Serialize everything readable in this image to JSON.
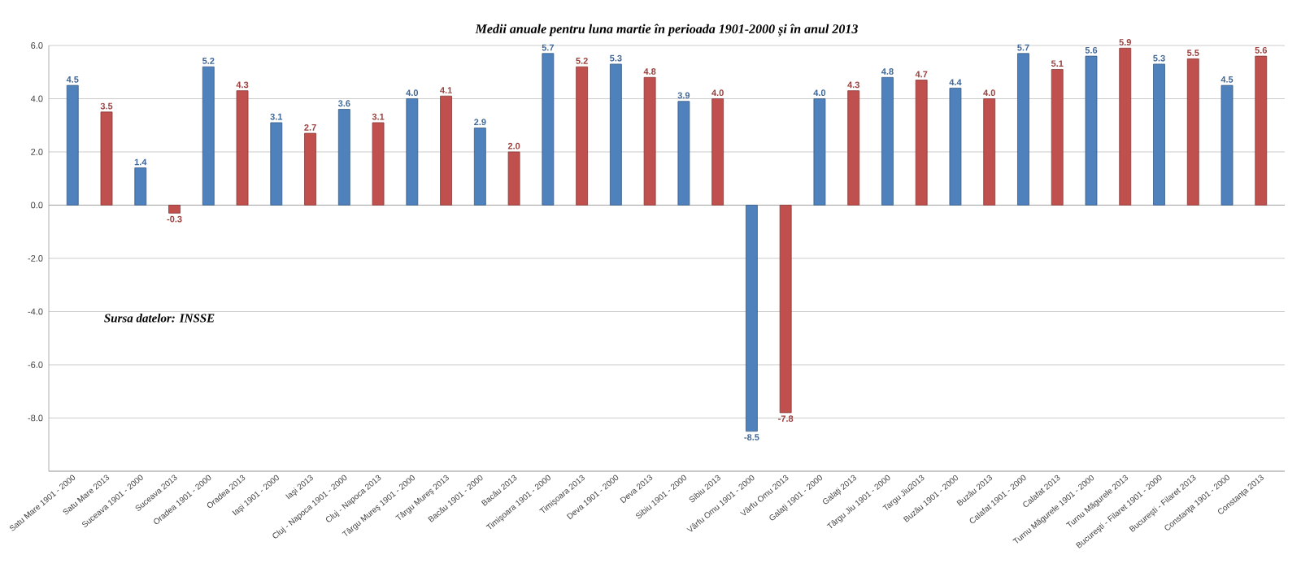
{
  "chart_data": {
    "type": "bar",
    "title": "Medii anuale pentru luna martie în perioada 1901-2000 și în anul 2013",
    "categories": [
      "Satu Mare 1901 - 2000",
      "Satu Mare 2013",
      "Suceava 1901 - 2000",
      "Suceava 2013",
      "Oradea 1901 - 2000",
      "Oradea 2013",
      "Iaşi 1901 - 2000",
      "Iaşi 2013",
      "Cluj - Napoca 1901 - 2000",
      "Cluj - Napoca 2013",
      "Târgu Mureş 1901 - 2000",
      "Târgu Mureş 2013",
      "Bacău 1901 - 2000",
      "Bacău 2013",
      "Timişoara 1901 - 2000",
      "Timişoara 2013",
      "Deva 1901 - 2000",
      "Deva 2013",
      "Sibiu 1901 - 2000",
      "Sibiu 2013",
      "Vârfu Omu 1901 - 2000",
      "Vârfu Omu 2013",
      "Galaţi 1901 - 2000",
      "Galaţi 2013",
      "Târgu Jiu 1901 - 2000",
      "Targu Jiu2013",
      "Buzău 1901 - 2000",
      "Buzău 2013",
      "Calafat 1901 - 2000",
      "Calafat 2013",
      "Turnu Măgurele 1901 - 2000",
      "Turnu Măgurele 2013",
      "Bucureşti - Filaret 1901 - 2000",
      "Bucureşti - Filaret 2013",
      "Constanţa 1901 - 2000",
      "Constanţa 2013"
    ],
    "values": [
      4.5,
      3.5,
      1.4,
      -0.3,
      5.2,
      4.3,
      3.1,
      2.7,
      3.6,
      3.1,
      4.0,
      4.1,
      2.9,
      2.0,
      5.7,
      5.2,
      5.3,
      4.8,
      3.9,
      4.0,
      -8.5,
      -7.8,
      4.0,
      4.3,
      4.8,
      4.7,
      4.4,
      4.0,
      5.7,
      5.1,
      5.6,
      5.9,
      5.3,
      5.5,
      4.5,
      5.6
    ],
    "value_labels": [
      "4.5",
      "3.5",
      "1.4",
      "-0.3",
      "5.2",
      "4.3",
      "3.1",
      "2.7",
      "3.6",
      "3.1",
      "4.0",
      "4.1",
      "2.9",
      "2.0",
      "5.7",
      "5.2",
      "5.3",
      "4.8",
      "3.9",
      "4.0",
      "-8.5",
      "-7.8",
      "4.0",
      "4.3",
      "4.8",
      "4.7",
      "4.4",
      "4.0",
      "5.7",
      "5.1",
      "5.6",
      "5.9",
      "5.3",
      "5.5",
      "4.5",
      "5.6"
    ],
    "colors": [
      "#4f81bd",
      "#c0504d",
      "#4f81bd",
      "#c0504d",
      "#4f81bd",
      "#c0504d",
      "#4f81bd",
      "#c0504d",
      "#4f81bd",
      "#c0504d",
      "#4f81bd",
      "#c0504d",
      "#4f81bd",
      "#c0504d",
      "#4f81bd",
      "#c0504d",
      "#4f81bd",
      "#c0504d",
      "#4f81bd",
      "#c0504d",
      "#4f81bd",
      "#c0504d",
      "#4f81bd",
      "#c0504d",
      "#4f81bd",
      "#c0504d",
      "#4f81bd",
      "#c0504d",
      "#4f81bd",
      "#c0504d",
      "#4f81bd",
      "#c0504d",
      "#4f81bd",
      "#c0504d",
      "#4f81bd",
      "#c0504d"
    ],
    "ylim": [
      -10,
      6
    ],
    "yticks": [
      {
        "value": -10,
        "label": null
      },
      {
        "value": -8,
        "label": "-8.0"
      },
      {
        "value": -6,
        "label": "-6.0"
      },
      {
        "value": -4,
        "label": "-4.0"
      },
      {
        "value": -2,
        "label": "-2.0"
      },
      {
        "value": 0,
        "label": "0.0"
      },
      {
        "value": 2,
        "label": "2.0"
      },
      {
        "value": 4,
        "label": "4.0"
      },
      {
        "value": 6,
        "label": "6.0"
      }
    ],
    "grid": "y",
    "annotations": [
      "Sursa datelor: INSSE"
    ]
  }
}
